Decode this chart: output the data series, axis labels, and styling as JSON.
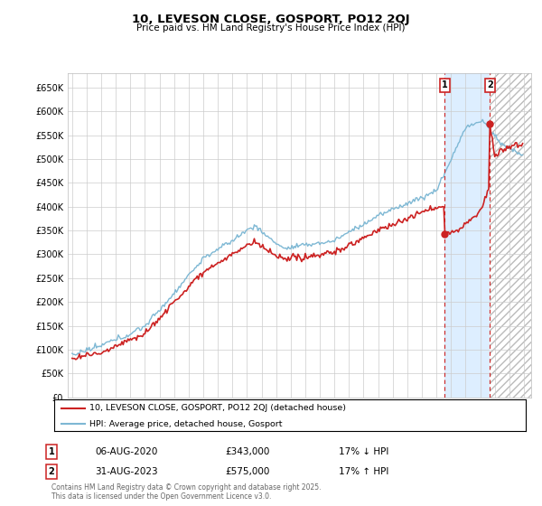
{
  "title": "10, LEVESON CLOSE, GOSPORT, PO12 2QJ",
  "subtitle": "Price paid vs. HM Land Registry's House Price Index (HPI)",
  "ylim": [
    0,
    680000
  ],
  "hpi_color": "#7eb8d4",
  "price_color": "#cc2222",
  "dashed_line_color": "#cc2222",
  "grid_color": "#cccccc",
  "background_color": "#ffffff",
  "annotation1_date": "06-AUG-2020",
  "annotation1_price": "£343,000",
  "annotation1_note": "17% ↓ HPI",
  "annotation2_date": "31-AUG-2023",
  "annotation2_price": "£575,000",
  "annotation2_note": "17% ↑ HPI",
  "legend_label1": "10, LEVESON CLOSE, GOSPORT, PO12 2QJ (detached house)",
  "legend_label2": "HPI: Average price, detached house, Gosport",
  "footer": "Contains HM Land Registry data © Crown copyright and database right 2025.\nThis data is licensed under the Open Government Licence v3.0.",
  "marker1_x": 2020.58,
  "marker1_y": 343000,
  "marker2_x": 2023.66,
  "marker2_y": 575000,
  "shade_color": "#ddeeff",
  "hatch_color": "#aaaaaa",
  "xlim_left": 1994.7,
  "xlim_right": 2026.5
}
